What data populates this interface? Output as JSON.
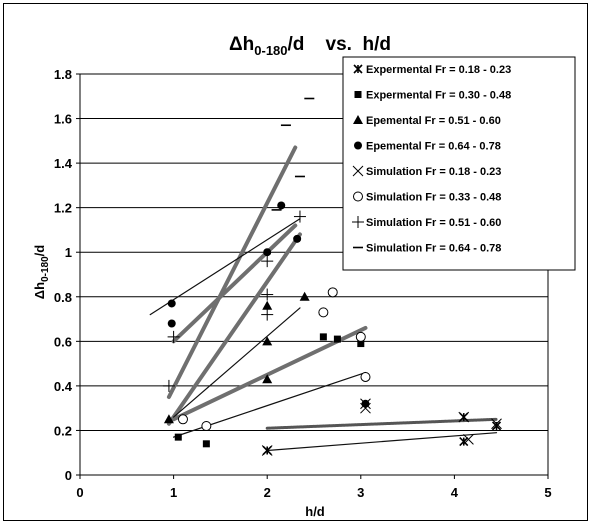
{
  "chart_data": {
    "type": "scatter",
    "title_main": "Δh",
    "title_sub": "0-180",
    "title_rest": "/d    vs.  h/d",
    "xlabel": "h/d",
    "ylabel_main": "Δh",
    "ylabel_sub": "0-180",
    "ylabel_rest": "/d",
    "xlim": [
      0,
      5
    ],
    "ylim": [
      0,
      1.8
    ],
    "xticks": [
      "0",
      "1",
      "2",
      "3",
      "4",
      "5"
    ],
    "yticks": [
      "0",
      "0.2",
      "0.4",
      "0.6",
      "0.8",
      "1",
      "1.2",
      "1.4",
      "1.6",
      "1.8"
    ],
    "grid": "horizontal",
    "legend_position": "top-right",
    "series": [
      {
        "name": "Expermental  Fr = 0.18 - 0.23",
        "marker": "star",
        "points": [
          [
            2,
            0.11
          ],
          [
            4.1,
            0.26
          ],
          [
            4.1,
            0.15
          ],
          [
            4.45,
            0.22
          ]
        ]
      },
      {
        "name": "Expermental  Fr = 0.30 - 0.48",
        "marker": "square",
        "points": [
          [
            1.05,
            0.17
          ],
          [
            1.35,
            0.14
          ],
          [
            2.6,
            0.62
          ],
          [
            2.75,
            0.61
          ],
          [
            3.0,
            0.59
          ]
        ]
      },
      {
        "name": "Epemental  Fr = 0.51 - 0.60",
        "marker": "triangle",
        "points": [
          [
            0.95,
            0.25
          ],
          [
            2.0,
            0.43
          ],
          [
            2.0,
            0.6
          ],
          [
            2.0,
            0.76
          ],
          [
            2.4,
            0.8
          ]
        ]
      },
      {
        "name": "Epemental  Fr = 0.64 - 0.78",
        "marker": "circle-filled",
        "points": [
          [
            0.98,
            0.77
          ],
          [
            0.98,
            0.68
          ],
          [
            2.0,
            1.0
          ],
          [
            2.15,
            1.21
          ],
          [
            2.32,
            1.06
          ],
          [
            3.05,
            0.32
          ]
        ]
      },
      {
        "name": "Simulation Fr = 0.18 - 0.23",
        "marker": "x",
        "points": [
          [
            2.0,
            0.11
          ],
          [
            4.1,
            0.26
          ],
          [
            4.15,
            0.16
          ],
          [
            4.45,
            0.23
          ],
          [
            3.05,
            0.32
          ],
          [
            3.05,
            0.3
          ]
        ]
      },
      {
        "name": "Simulation Fr = 0.33 - 0.48",
        "marker": "circle-open",
        "points": [
          [
            1.35,
            0.22
          ],
          [
            1.1,
            0.25
          ],
          [
            2.6,
            0.73
          ],
          [
            2.7,
            0.82
          ],
          [
            3.0,
            0.62
          ],
          [
            3.05,
            0.44
          ]
        ]
      },
      {
        "name": "Simulation  Fr = 0.51 - 0.60",
        "marker": "plus",
        "points": [
          [
            0.95,
            0.4
          ],
          [
            1.0,
            0.62
          ],
          [
            2.0,
            0.96
          ],
          [
            2.0,
            0.81
          ],
          [
            2.0,
            0.72
          ],
          [
            2.35,
            1.16
          ]
        ]
      },
      {
        "name": "Simulation Fr = 0.64 - 0.78",
        "marker": "dash",
        "points": [
          [
            2.2,
            1.57
          ],
          [
            2.35,
            1.34
          ],
          [
            2.1,
            1.19
          ],
          [
            2.45,
            1.69
          ]
        ]
      }
    ],
    "trendlines": [
      {
        "style": "thick",
        "from": [
          0.95,
          0.35
        ],
        "to": [
          2.3,
          1.47
        ]
      },
      {
        "style": "thick",
        "from": [
          1.0,
          0.6
        ],
        "to": [
          2.3,
          1.12
        ]
      },
      {
        "style": "thick",
        "from": [
          0.95,
          0.23
        ],
        "to": [
          2.35,
          1.08
        ]
      },
      {
        "style": "thick",
        "from": [
          1.0,
          0.25
        ],
        "to": [
          3.05,
          0.66
        ]
      },
      {
        "style": "thin",
        "from": [
          0.75,
          0.72
        ],
        "to": [
          2.35,
          1.15
        ]
      },
      {
        "style": "thin",
        "from": [
          1.0,
          0.26
        ],
        "to": [
          2.35,
          0.75
        ]
      },
      {
        "style": "thin",
        "from": [
          1.0,
          0.17
        ],
        "to": [
          3.05,
          0.46
        ]
      },
      {
        "style": "thin",
        "from": [
          2.0,
          0.11
        ],
        "to": [
          4.45,
          0.19
        ]
      },
      {
        "style": "thin-dark",
        "from": [
          2.0,
          0.21
        ],
        "to": [
          4.45,
          0.25
        ]
      }
    ]
  }
}
